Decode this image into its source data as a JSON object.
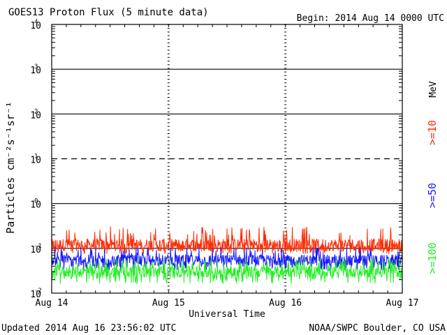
{
  "header": {
    "title": "GOES13 Proton Flux (5 minute data)",
    "begin": "Begin: 2014 Aug 14 0000 UTC"
  },
  "footer": {
    "updated": "Updated 2014 Aug 16 23:56:02 UTC",
    "credit": "NOAA/SWPC Boulder, CO USA"
  },
  "chart_data": {
    "type": "line",
    "xlabel": "Universal Time",
    "ylabel": "Particles cm⁻²s⁻¹sr⁻¹",
    "y_scale": "log",
    "ylim": [
      0.01,
      10000
    ],
    "xlim_days": [
      0,
      3
    ],
    "x_ticks": [
      {
        "day": 0,
        "label": "Aug 14"
      },
      {
        "day": 1,
        "label": "Aug 15"
      },
      {
        "day": 2,
        "label": "Aug 16"
      },
      {
        "day": 3,
        "label": "Aug 17"
      }
    ],
    "y_ticks": [
      {
        "value": 0.01,
        "base": "10",
        "exp": "-2"
      },
      {
        "value": 0.1,
        "base": "10",
        "exp": "-1"
      },
      {
        "value": 1,
        "base": "10",
        "exp": "0"
      },
      {
        "value": 10,
        "base": "10",
        "exp": "1"
      },
      {
        "value": 100,
        "base": "10",
        "exp": "2"
      },
      {
        "value": 1000,
        "base": "10",
        "exp": "3"
      },
      {
        "value": 10000,
        "base": "10",
        "exp": "4"
      }
    ],
    "threshold_line": {
      "value": 10,
      "style": "dashed"
    },
    "unit_label": "MeV",
    "series": [
      {
        "name": ">=10",
        "color": "#ff2a00",
        "typical": 0.12,
        "min": 0.075,
        "max": 0.31
      },
      {
        "name": ">=50",
        "color": "#1a1aff",
        "typical": 0.055,
        "min": 0.032,
        "max": 0.11
      },
      {
        "name": ">=100",
        "color": "#22ee22",
        "typical": 0.03,
        "min": 0.016,
        "max": 0.06
      }
    ]
  }
}
